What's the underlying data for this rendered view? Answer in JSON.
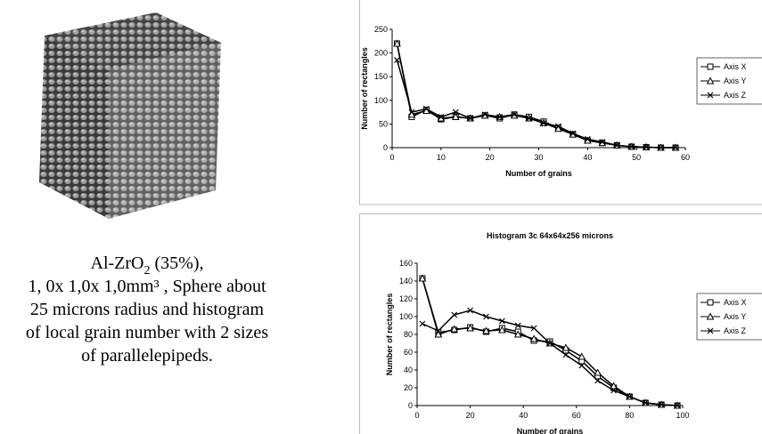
{
  "caption": {
    "first_line": [
      "Al-ZrO",
      "2",
      " (35%),"
    ],
    "lines": [
      "1, 0x 1,0x 1,0mm³ , Sphere about",
      "25 microns radius and histogram",
      "of local grain number with 2 sizes",
      "of parallelepipeds."
    ]
  },
  "chart_data": [
    {
      "type": "line",
      "x_label": "Number of grains",
      "y_label": "Number of rectangles",
      "xlim": [
        0,
        60
      ],
      "xticks": [
        0,
        10,
        20,
        30,
        40,
        50,
        60
      ],
      "ylim": [
        0,
        250
      ],
      "yticks": [
        0,
        50,
        100,
        150,
        200,
        250
      ],
      "x": [
        1,
        4,
        7,
        10,
        13,
        16,
        19,
        22,
        25,
        28,
        31,
        34,
        37,
        40,
        43,
        46,
        49,
        52,
        55,
        58
      ],
      "series": [
        {
          "name": "Axis X",
          "color": "#000000",
          "marker": "square",
          "values": [
            220,
            65,
            80,
            60,
            65,
            62,
            68,
            62,
            70,
            65,
            55,
            42,
            28,
            15,
            10,
            5,
            2,
            1,
            0,
            0
          ]
        },
        {
          "name": "Axis Y",
          "color": "#000000",
          "marker": "triangle",
          "values": [
            220,
            70,
            78,
            62,
            65,
            62,
            68,
            65,
            68,
            62,
            52,
            40,
            28,
            15,
            10,
            5,
            2,
            1,
            0,
            0
          ]
        },
        {
          "name": "Axis Z",
          "color": "#000000",
          "marker": "x",
          "values": [
            185,
            75,
            82,
            65,
            75,
            62,
            70,
            65,
            70,
            62,
            52,
            45,
            30,
            18,
            12,
            5,
            2,
            1,
            0,
            0
          ]
        }
      ],
      "legend": "right"
    },
    {
      "type": "line",
      "title": "Histogram 3c 64x64x256 microns",
      "x_label": "Number of grains",
      "y_label": "Number of rectangles",
      "xlim": [
        0,
        100
      ],
      "xticks": [
        0,
        20,
        40,
        60,
        80,
        100
      ],
      "ylim": [
        0,
        160
      ],
      "yticks": [
        0,
        20,
        40,
        60,
        80,
        100,
        120,
        140,
        160
      ],
      "x": [
        2,
        8,
        14,
        20,
        26,
        32,
        38,
        44,
        50,
        56,
        62,
        68,
        74,
        80,
        86,
        92,
        98
      ],
      "series": [
        {
          "name": "Axis X",
          "color": "#000000",
          "marker": "square",
          "values": [
            143,
            82,
            85,
            88,
            83,
            87,
            83,
            73,
            72,
            62,
            50,
            33,
            20,
            10,
            3,
            1,
            0
          ]
        },
        {
          "name": "Axis Y",
          "color": "#000000",
          "marker": "triangle",
          "values": [
            143,
            80,
            86,
            87,
            84,
            85,
            80,
            75,
            70,
            65,
            55,
            37,
            22,
            10,
            3,
            1,
            0
          ]
        },
        {
          "name": "Axis Z",
          "color": "#000000",
          "marker": "x",
          "values": [
            92,
            84,
            102,
            107,
            100,
            95,
            90,
            87,
            70,
            57,
            45,
            28,
            17,
            10,
            3,
            1,
            0
          ]
        }
      ],
      "legend": "right"
    }
  ]
}
